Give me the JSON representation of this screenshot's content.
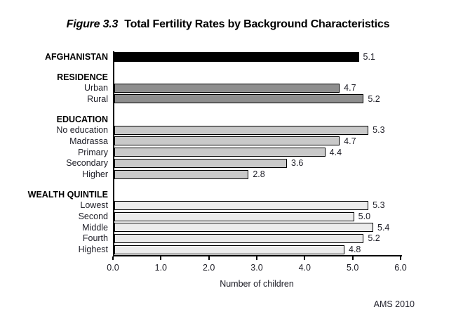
{
  "title": {
    "prefix": "Figure 3.3",
    "text": "Total Fertility Rates by Background Characteristics"
  },
  "source": "AMS 2010",
  "colors": {
    "national_bar": "#000000",
    "residence_bar": "#8e8e8e",
    "education_bar": "#c9c9c9",
    "wealth_bar": "#ececec",
    "outline": "#000000"
  },
  "chart_data": {
    "type": "bar",
    "orientation": "horizontal",
    "title": "Figure 3.3 Total Fertility Rates by Background Characteristics",
    "xlabel": "Number of children",
    "xlim": [
      0,
      6
    ],
    "xticks": [
      "0.0",
      "1.0",
      "2.0",
      "3.0",
      "4.0",
      "5.0",
      "6.0"
    ],
    "grid": false,
    "legend": false,
    "groups": [
      {
        "header": null,
        "color_key": "national_bar",
        "bars": [
          {
            "label": "AFGHANISTAN",
            "value": 5.1,
            "value_label": "5.1",
            "bold": true
          }
        ]
      },
      {
        "header": "RESIDENCE",
        "color_key": "residence_bar",
        "bars": [
          {
            "label": "Urban",
            "value": 4.7,
            "value_label": "4.7"
          },
          {
            "label": "Rural",
            "value": 5.2,
            "value_label": "5.2"
          }
        ]
      },
      {
        "header": "EDUCATION",
        "color_key": "education_bar",
        "bars": [
          {
            "label": "No education",
            "value": 5.3,
            "value_label": "5.3"
          },
          {
            "label": "Madrassa",
            "value": 4.7,
            "value_label": "4.7"
          },
          {
            "label": "Primary",
            "value": 4.4,
            "value_label": "4.4"
          },
          {
            "label": "Secondary",
            "value": 3.6,
            "value_label": "3.6"
          },
          {
            "label": "Higher",
            "value": 2.8,
            "value_label": "2.8"
          }
        ]
      },
      {
        "header": "WEALTH QUINTILE",
        "color_key": "wealth_bar",
        "bars": [
          {
            "label": "Lowest",
            "value": 5.3,
            "value_label": "5.3"
          },
          {
            "label": "Second",
            "value": 5.0,
            "value_label": "5.0"
          },
          {
            "label": "Middle",
            "value": 5.4,
            "value_label": "5.4"
          },
          {
            "label": "Fourth",
            "value": 5.2,
            "value_label": "5.2"
          },
          {
            "label": "Highest",
            "value": 4.8,
            "value_label": "4.8"
          }
        ]
      }
    ]
  }
}
